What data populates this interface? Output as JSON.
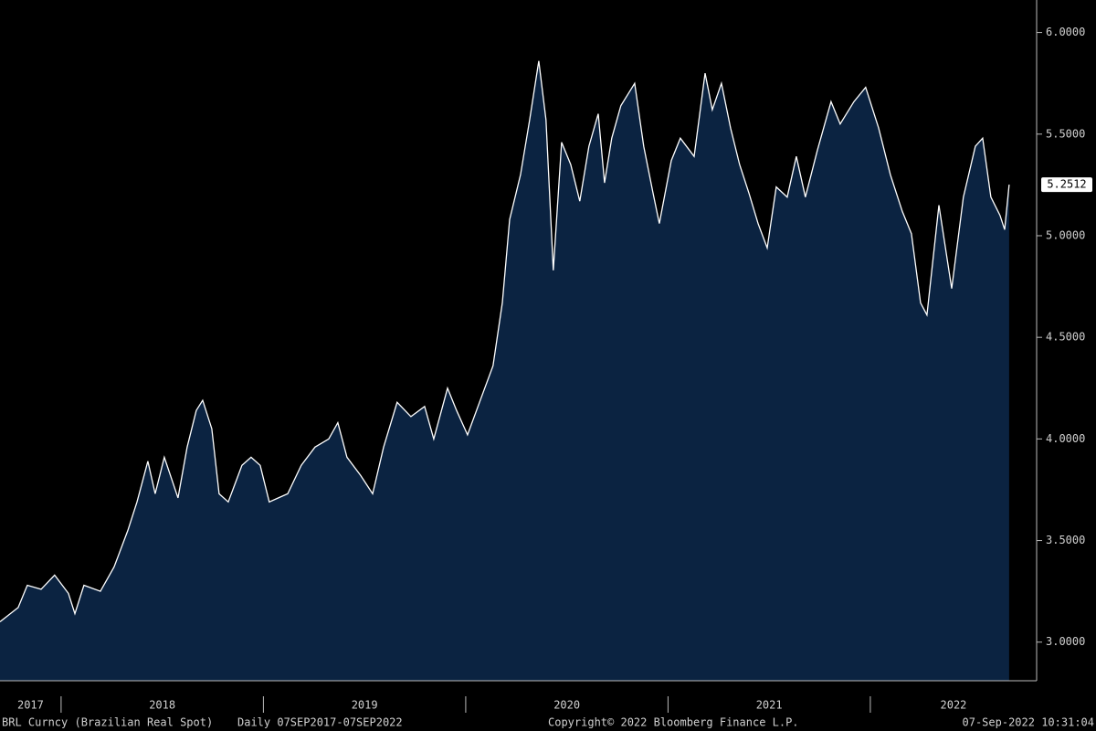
{
  "chart_data": {
    "type": "area",
    "x": [
      2017.698,
      2017.788,
      2017.833,
      2017.901,
      2017.968,
      2018.036,
      2018.068,
      2018.113,
      2018.194,
      2018.262,
      2018.33,
      2018.375,
      2018.429,
      2018.465,
      2018.51,
      2018.578,
      2018.623,
      2018.668,
      2018.7,
      2018.745,
      2018.781,
      2018.826,
      2018.894,
      2018.939,
      2018.984,
      2019.029,
      2019.074,
      2019.12,
      2019.187,
      2019.255,
      2019.323,
      2019.368,
      2019.413,
      2019.481,
      2019.54,
      2019.594,
      2019.661,
      2019.729,
      2019.797,
      2019.842,
      2019.91,
      2019.955,
      2020.009,
      2020.068,
      2020.135,
      2020.181,
      2020.217,
      2020.271,
      2020.316,
      2020.361,
      2020.397,
      2020.433,
      2020.474,
      2020.519,
      2020.564,
      2020.609,
      2020.655,
      2020.686,
      2020.722,
      2020.767,
      2020.835,
      2020.88,
      2020.926,
      2020.957,
      2021.016,
      2021.061,
      2021.129,
      2021.183,
      2021.219,
      2021.264,
      2021.309,
      2021.354,
      2021.4,
      2021.445,
      2021.49,
      2021.535,
      2021.589,
      2021.634,
      2021.679,
      2021.738,
      2021.806,
      2021.851,
      2021.919,
      2021.977,
      2022.041,
      2022.099,
      2022.158,
      2022.203,
      2022.248,
      2022.28,
      2022.339,
      2022.402,
      2022.46,
      2022.519,
      2022.555,
      2022.596,
      2022.641,
      2022.664,
      2022.686
    ],
    "values": [
      3.1,
      3.17,
      3.28,
      3.26,
      3.33,
      3.24,
      3.14,
      3.28,
      3.25,
      3.37,
      3.55,
      3.69,
      3.89,
      3.73,
      3.91,
      3.71,
      3.96,
      4.14,
      4.19,
      4.05,
      3.73,
      3.69,
      3.87,
      3.91,
      3.87,
      3.69,
      3.71,
      3.73,
      3.87,
      3.96,
      4.0,
      4.08,
      3.91,
      3.82,
      3.73,
      3.96,
      4.18,
      4.11,
      4.16,
      4.0,
      4.25,
      4.14,
      4.02,
      4.18,
      4.36,
      4.67,
      5.08,
      5.3,
      5.57,
      5.86,
      5.57,
      4.83,
      5.46,
      5.35,
      5.17,
      5.44,
      5.6,
      5.26,
      5.48,
      5.64,
      5.75,
      5.44,
      5.21,
      5.06,
      5.37,
      5.48,
      5.39,
      5.8,
      5.62,
      5.75,
      5.53,
      5.35,
      5.21,
      5.06,
      4.94,
      5.24,
      5.19,
      5.39,
      5.19,
      5.42,
      5.66,
      5.55,
      5.66,
      5.73,
      5.53,
      5.3,
      5.12,
      5.01,
      4.67,
      4.61,
      5.15,
      4.74,
      5.19,
      5.44,
      5.48,
      5.19,
      5.1,
      5.03,
      5.2512
    ],
    "color": "#0b2341",
    "line_color": "#ffffff",
    "xlim": [
      2017.698,
      2022.822
    ],
    "xticks": [
      2018,
      2019,
      2020,
      2021,
      2022
    ],
    "year_labels": [
      "2017",
      "2018",
      "2019",
      "2020",
      "2021",
      "2022"
    ],
    "ylim": [
      2.81,
      6.16
    ],
    "yticks": [
      {
        "value": 3,
        "label": "3.0000"
      },
      {
        "value": 3.5,
        "label": "3.5000"
      },
      {
        "value": 4,
        "label": "4.0000"
      },
      {
        "value": 4.5,
        "label": "4.5000"
      },
      {
        "value": 5,
        "label": "5.0000"
      },
      {
        "value": 5.5,
        "label": "5.5000"
      },
      {
        "value": 6,
        "label": "6.0000"
      }
    ],
    "footer": [
      "BRL Curncy (Brazilian Real Spot)",
      "Daily 07SEP2017-07SEP2022",
      "Copyright© 2022 Bloomberg Finance L.P.",
      "07-Sep-2022 10:31:04"
    ]
  }
}
